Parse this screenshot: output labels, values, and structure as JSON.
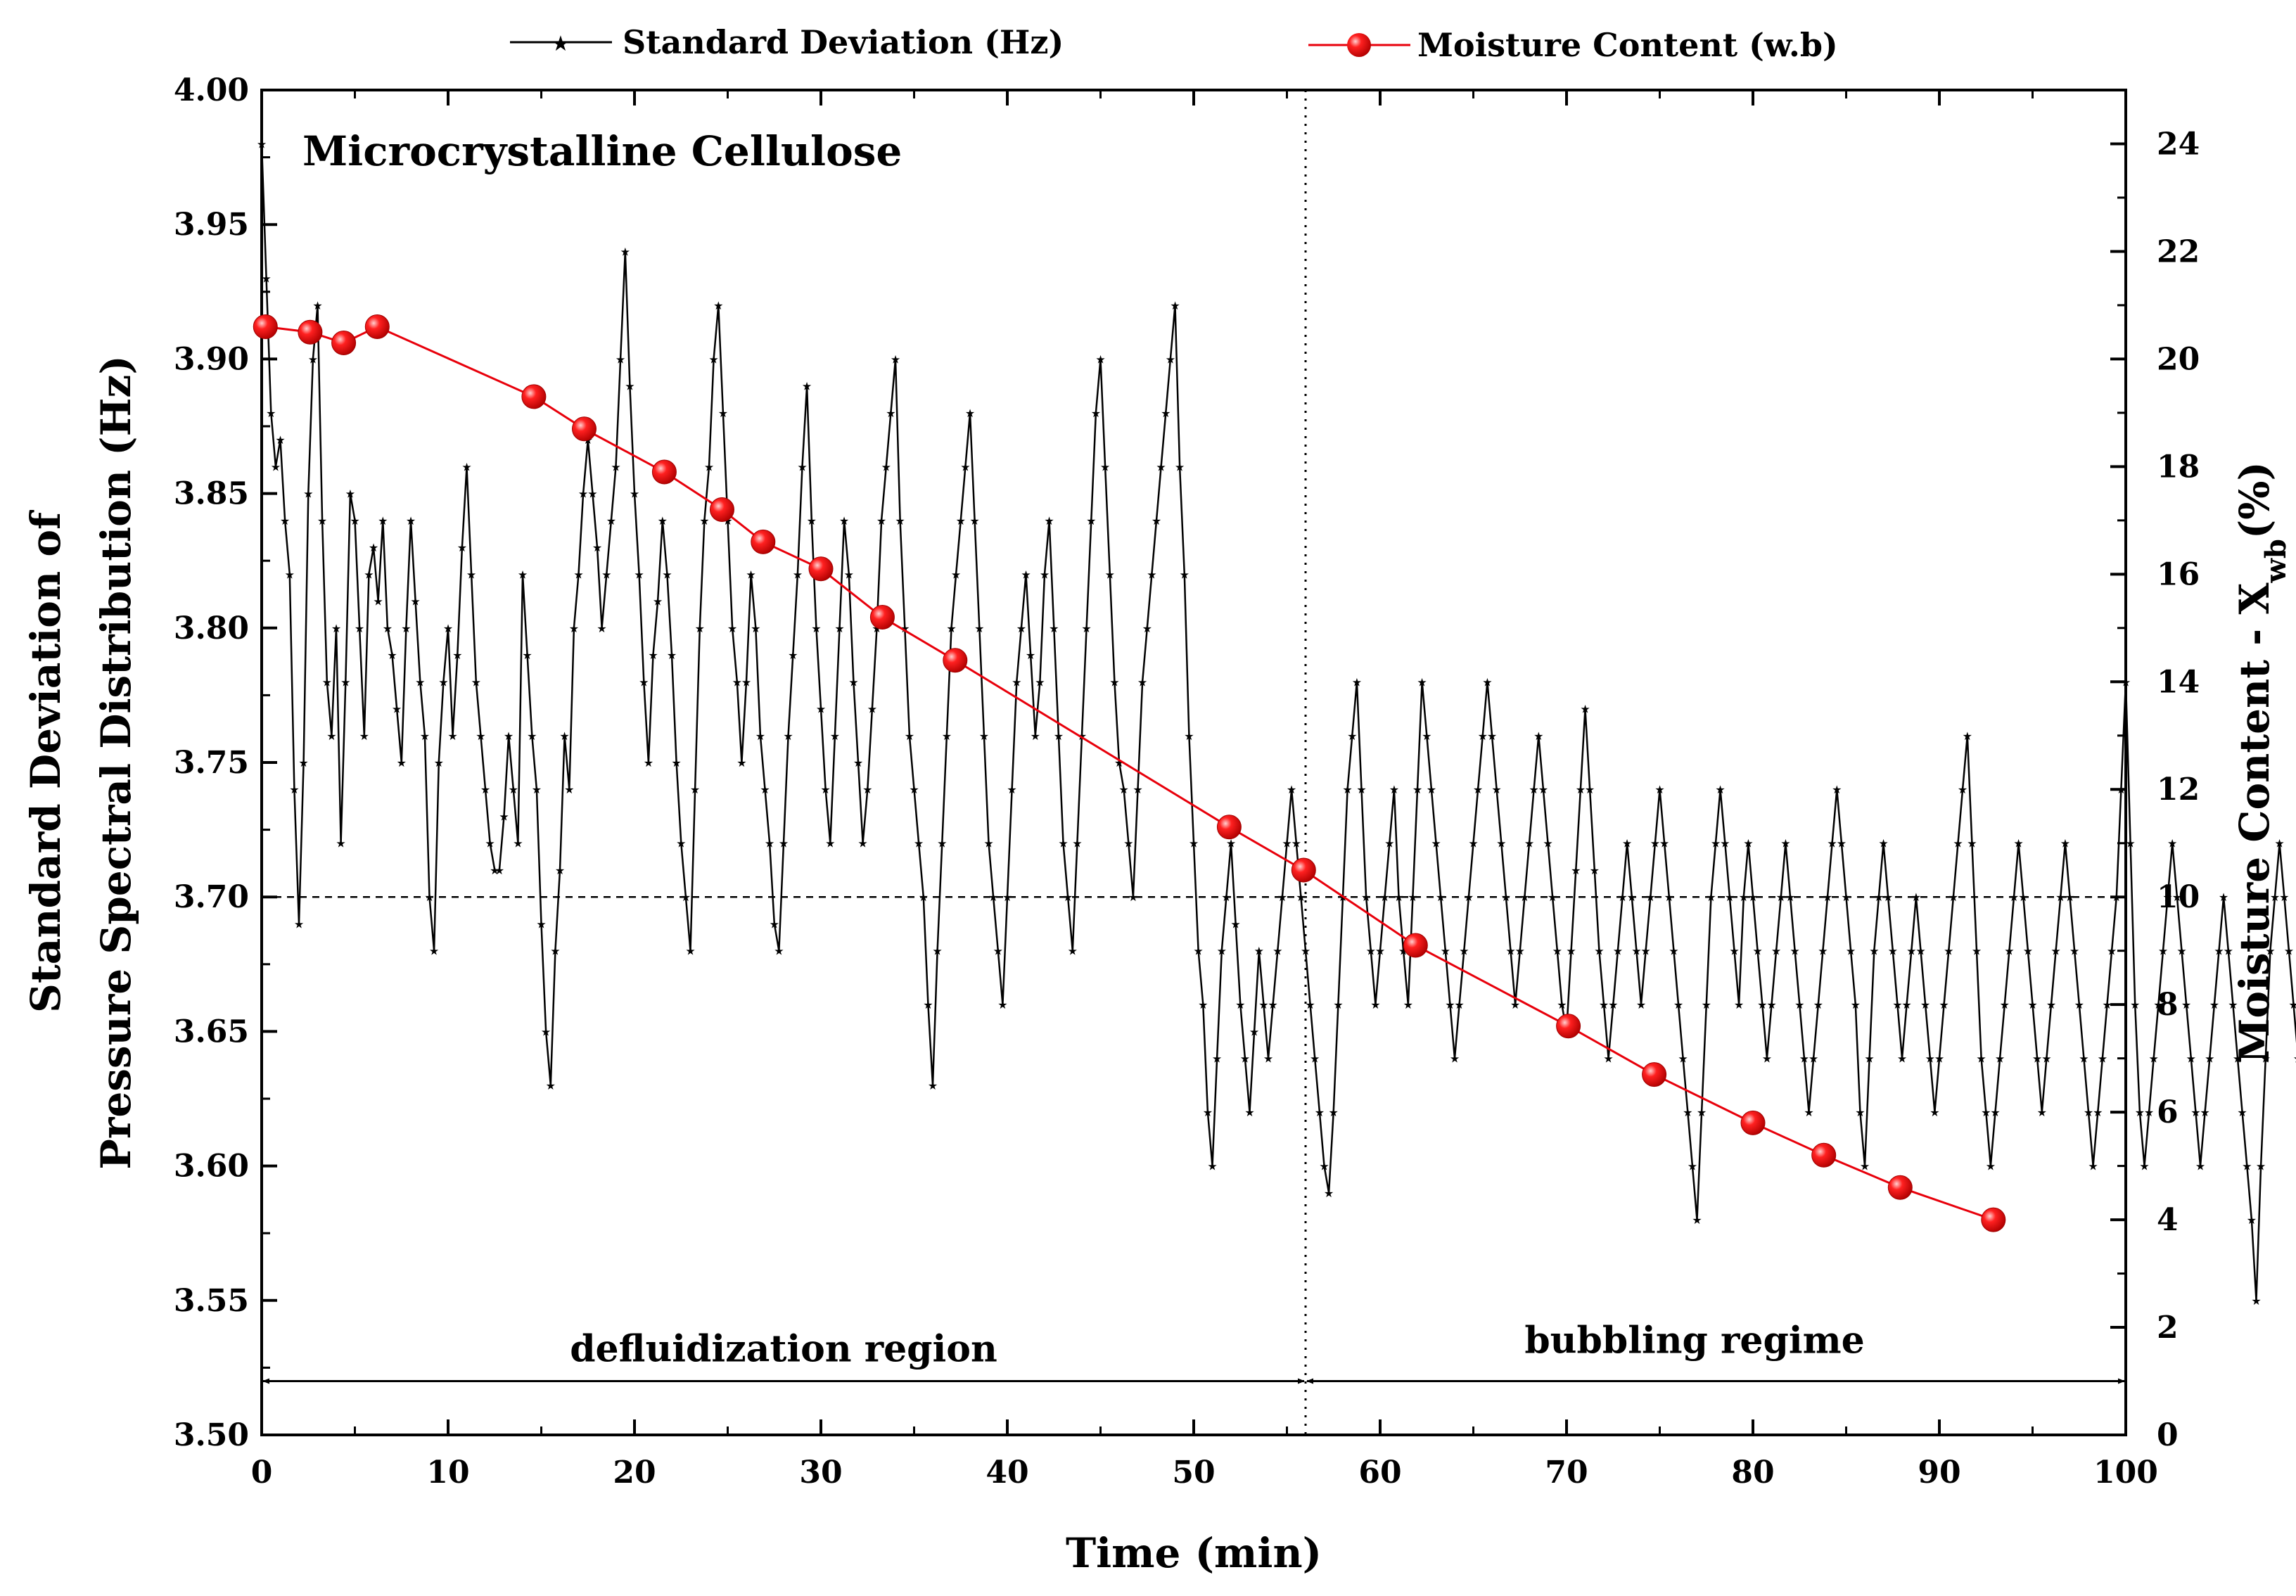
{
  "chart_data": {
    "type": "line",
    "title": "Microcrystalline Cellulose",
    "xlabel": "Time (min)",
    "ylabel_left_line1": "Standard Deviation of",
    "ylabel_left_line2": "Pressure Spectral Distribution (Hz)",
    "ylabel_right_main": "Moisture Content - X",
    "ylabel_right_sub": "wb",
    "ylabel_right_unit": "(%)",
    "xlim": [
      0,
      100
    ],
    "ylim_left": [
      3.5,
      4.0
    ],
    "ylim_right": [
      0,
      25
    ],
    "x_ticks": [
      0,
      10,
      20,
      30,
      40,
      50,
      60,
      70,
      80,
      90,
      100
    ],
    "y_left_ticks": [
      "3.50",
      "3.55",
      "3.60",
      "3.65",
      "3.70",
      "3.75",
      "3.80",
      "3.85",
      "3.90",
      "3.95",
      "4.00"
    ],
    "y_right_ticks": [
      0,
      2,
      4,
      6,
      8,
      10,
      12,
      14,
      16,
      18,
      20,
      22,
      24
    ],
    "legend": [
      {
        "label": "Standard Deviation (Hz)",
        "color": "#000000",
        "marker": "star"
      },
      {
        "label": "Moisture Content (w.b)",
        "color": "#e8000b",
        "marker": "circle"
      }
    ],
    "reference_lines": {
      "horizontal_y_left": 3.7,
      "vertical_x": 56
    },
    "regions": [
      {
        "label": "defluidization region",
        "x_start": 0,
        "x_end": 56
      },
      {
        "label": "bubbling regime",
        "x_start": 56,
        "x_end": 100
      }
    ],
    "series": [
      {
        "name": "Standard Deviation (Hz)",
        "axis": "left",
        "color": "#000000",
        "x_start": 0,
        "x_step": 0.25,
        "values": [
          3.98,
          3.93,
          3.88,
          3.86,
          3.87,
          3.84,
          3.82,
          3.74,
          3.69,
          3.75,
          3.85,
          3.9,
          3.92,
          3.84,
          3.78,
          3.76,
          3.8,
          3.72,
          3.78,
          3.85,
          3.84,
          3.8,
          3.76,
          3.82,
          3.83,
          3.81,
          3.84,
          3.8,
          3.79,
          3.77,
          3.75,
          3.8,
          3.84,
          3.81,
          3.78,
          3.76,
          3.7,
          3.68,
          3.75,
          3.78,
          3.8,
          3.76,
          3.79,
          3.83,
          3.86,
          3.82,
          3.78,
          3.76,
          3.74,
          3.72,
          3.71,
          3.71,
          3.73,
          3.76,
          3.74,
          3.72,
          3.82,
          3.79,
          3.76,
          3.74,
          3.69,
          3.65,
          3.63,
          3.68,
          3.71,
          3.76,
          3.74,
          3.8,
          3.82,
          3.85,
          3.87,
          3.85,
          3.83,
          3.8,
          3.82,
          3.84,
          3.86,
          3.9,
          3.94,
          3.89,
          3.85,
          3.82,
          3.78,
          3.75,
          3.79,
          3.81,
          3.84,
          3.82,
          3.79,
          3.75,
          3.72,
          3.7,
          3.68,
          3.74,
          3.8,
          3.84,
          3.86,
          3.9,
          3.92,
          3.88,
          3.84,
          3.8,
          3.78,
          3.75,
          3.78,
          3.82,
          3.8,
          3.76,
          3.74,
          3.72,
          3.69,
          3.68,
          3.72,
          3.76,
          3.79,
          3.82,
          3.86,
          3.89,
          3.84,
          3.8,
          3.77,
          3.74,
          3.72,
          3.76,
          3.8,
          3.84,
          3.82,
          3.78,
          3.75,
          3.72,
          3.74,
          3.77,
          3.8,
          3.84,
          3.86,
          3.88,
          3.9,
          3.84,
          3.8,
          3.76,
          3.74,
          3.72,
          3.7,
          3.66,
          3.63,
          3.68,
          3.72,
          3.76,
          3.8,
          3.82,
          3.84,
          3.86,
          3.88,
          3.84,
          3.8,
          3.76,
          3.72,
          3.7,
          3.68,
          3.66,
          3.7,
          3.74,
          3.78,
          3.8,
          3.82,
          3.79,
          3.76,
          3.78,
          3.82,
          3.84,
          3.8,
          3.76,
          3.72,
          3.7,
          3.68,
          3.72,
          3.76,
          3.8,
          3.84,
          3.88,
          3.9,
          3.86,
          3.82,
          3.78,
          3.75,
          3.74,
          3.72,
          3.7,
          3.74,
          3.78,
          3.8,
          3.82,
          3.84,
          3.86,
          3.88,
          3.9,
          3.92,
          3.86,
          3.82,
          3.76,
          3.72,
          3.68,
          3.66,
          3.62,
          3.6,
          3.64,
          3.68,
          3.7,
          3.72,
          3.69,
          3.66,
          3.64,
          3.62,
          3.65,
          3.68,
          3.66,
          3.64,
          3.66,
          3.68,
          3.7,
          3.72,
          3.74,
          3.72,
          3.7,
          3.68,
          3.66,
          3.64,
          3.62,
          3.6,
          3.59,
          3.62,
          3.66,
          3.7,
          3.74,
          3.76,
          3.78,
          3.74,
          3.7,
          3.68,
          3.66,
          3.68,
          3.7,
          3.72,
          3.74,
          3.7,
          3.68,
          3.66,
          3.7,
          3.74,
          3.78,
          3.76,
          3.74,
          3.72,
          3.7,
          3.68,
          3.66,
          3.64,
          3.66,
          3.68,
          3.7,
          3.72,
          3.74,
          3.76,
          3.78,
          3.76,
          3.74,
          3.72,
          3.7,
          3.68,
          3.66,
          3.68,
          3.7,
          3.72,
          3.74,
          3.76,
          3.74,
          3.72,
          3.7,
          3.68,
          3.66,
          3.65,
          3.68,
          3.71,
          3.74,
          3.77,
          3.74,
          3.71,
          3.68,
          3.66,
          3.64,
          3.66,
          3.68,
          3.7,
          3.72,
          3.7,
          3.68,
          3.66,
          3.68,
          3.7,
          3.72,
          3.74,
          3.72,
          3.7,
          3.68,
          3.66,
          3.64,
          3.62,
          3.6,
          3.58,
          3.62,
          3.66,
          3.7,
          3.72,
          3.74,
          3.72,
          3.7,
          3.68,
          3.66,
          3.7,
          3.72,
          3.7,
          3.68,
          3.66,
          3.64,
          3.66,
          3.68,
          3.7,
          3.72,
          3.7,
          3.68,
          3.66,
          3.64,
          3.62,
          3.64,
          3.66,
          3.68,
          3.7,
          3.72,
          3.74,
          3.72,
          3.7,
          3.68,
          3.66,
          3.62,
          3.6,
          3.64,
          3.68,
          3.7,
          3.72,
          3.7,
          3.68,
          3.66,
          3.64,
          3.66,
          3.68,
          3.7,
          3.68,
          3.66,
          3.64,
          3.62,
          3.64,
          3.66,
          3.68,
          3.7,
          3.72,
          3.74,
          3.76,
          3.72,
          3.68,
          3.64,
          3.62,
          3.6,
          3.62,
          3.64,
          3.66,
          3.68,
          3.7,
          3.72,
          3.7,
          3.68,
          3.66,
          3.64,
          3.62,
          3.64,
          3.66,
          3.68,
          3.7,
          3.72,
          3.7,
          3.68,
          3.66,
          3.64,
          3.62,
          3.6,
          3.62,
          3.64,
          3.66,
          3.68,
          3.7,
          3.74,
          3.78,
          3.72,
          3.66,
          3.62,
          3.6,
          3.62,
          3.64,
          3.66,
          3.68,
          3.7,
          3.72,
          3.7,
          3.68,
          3.66,
          3.64,
          3.62,
          3.6,
          3.62,
          3.64,
          3.66,
          3.68,
          3.7,
          3.68,
          3.66,
          3.64,
          3.62,
          3.6,
          3.58,
          3.55,
          3.6,
          3.64,
          3.68,
          3.7,
          3.72,
          3.7,
          3.68,
          3.66,
          3.64,
          3.62,
          3.64,
          3.66,
          3.68,
          3.7,
          3.68,
          3.66,
          3.64,
          3.62,
          3.64,
          3.66,
          3.68,
          3.7,
          3.72,
          3.74,
          3.76,
          3.72,
          3.68,
          3.64,
          3.62,
          3.6,
          3.62,
          3.64,
          3.66,
          3.68,
          3.7,
          3.72,
          3.7,
          3.68,
          3.66,
          3.64,
          3.62,
          3.64,
          3.66,
          3.68,
          3.7,
          3.72,
          3.74,
          3.72,
          3.7,
          3.68,
          3.66,
          3.64,
          3.62,
          3.64,
          3.66,
          3.68,
          3.66,
          3.64,
          3.62,
          3.6,
          3.58,
          3.56,
          3.54,
          3.56,
          3.58,
          3.6,
          3.62,
          3.64,
          3.6,
          3.56,
          3.54,
          3.58,
          3.64,
          3.7,
          3.76,
          3.79,
          3.74
        ]
      },
      {
        "name": "Moisture Content (w.b)",
        "axis": "right",
        "color": "#e8000b",
        "x": [
          0.2,
          2.6,
          4.4,
          6.2,
          14.6,
          17.3,
          21.6,
          24.7,
          26.9,
          30.0,
          33.3,
          37.2,
          51.9,
          55.9,
          61.9,
          70.1,
          74.7,
          80.0,
          83.8,
          87.9,
          92.9
        ],
        "values": [
          20.6,
          20.5,
          20.3,
          20.6,
          19.3,
          18.7,
          17.9,
          17.2,
          16.6,
          16.1,
          15.2,
          14.4,
          11.3,
          10.5,
          9.1,
          7.6,
          6.7,
          5.8,
          5.2,
          4.6,
          4.0
        ]
      }
    ]
  }
}
